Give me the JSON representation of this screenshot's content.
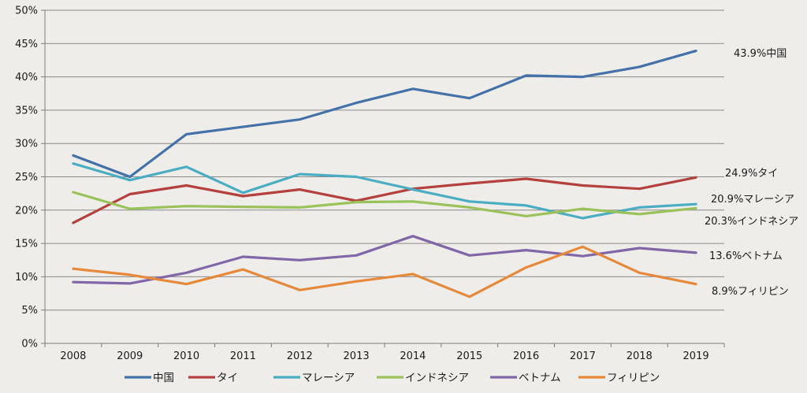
{
  "chart_data": {
    "type": "line",
    "title": "",
    "xlabel": "",
    "ylabel": "",
    "x": [
      "2008",
      "2009",
      "2010",
      "2011",
      "2012",
      "2013",
      "2014",
      "2015",
      "2016",
      "2017",
      "2018",
      "2019"
    ],
    "ylim": [
      0,
      50
    ],
    "yticks": [
      "0%",
      "5%",
      "10%",
      "15%",
      "20%",
      "25%",
      "30%",
      "35%",
      "40%",
      "45%",
      "50%"
    ],
    "grid": "horizontal",
    "legend_position": "bottom",
    "series": [
      {
        "name": "中国",
        "color": "#4472a8",
        "values": [
          28.2,
          25.0,
          31.4,
          32.5,
          33.6,
          36.1,
          38.2,
          36.8,
          40.2,
          40.0,
          41.5,
          43.9
        ],
        "end_label": "43.9%中国"
      },
      {
        "name": "タイ",
        "color": "#b5413e",
        "values": [
          18.1,
          22.4,
          23.7,
          22.1,
          23.1,
          21.4,
          23.2,
          24.0,
          24.7,
          23.7,
          23.2,
          24.9
        ],
        "end_label": "24.9%タイ"
      },
      {
        "name": "マレーシア",
        "color": "#4aadc4",
        "values": [
          27.0,
          24.5,
          26.5,
          22.6,
          25.4,
          25.0,
          23.1,
          21.3,
          20.7,
          18.8,
          20.4,
          20.9
        ],
        "end_label": "20.9%マレーシア"
      },
      {
        "name": "インドネシア",
        "color": "#9bc15a",
        "values": [
          22.7,
          20.2,
          20.6,
          20.5,
          20.4,
          21.2,
          21.3,
          20.4,
          19.1,
          20.2,
          19.4,
          20.3
        ],
        "end_label": "20.3%インドネシア"
      },
      {
        "name": "ベトナム",
        "color": "#8166a8",
        "values": [
          9.2,
          9.0,
          10.6,
          13.0,
          12.5,
          13.2,
          16.1,
          13.2,
          14.0,
          13.1,
          14.3,
          13.6
        ],
        "end_label": "13.6%ベトナム"
      },
      {
        "name": "フィリピン",
        "color": "#e6893a",
        "values": [
          11.2,
          10.3,
          8.9,
          11.1,
          8.0,
          9.3,
          10.4,
          7.0,
          11.4,
          14.5,
          10.6,
          8.9
        ],
        "end_label": "8.9%フィリピン"
      }
    ]
  }
}
